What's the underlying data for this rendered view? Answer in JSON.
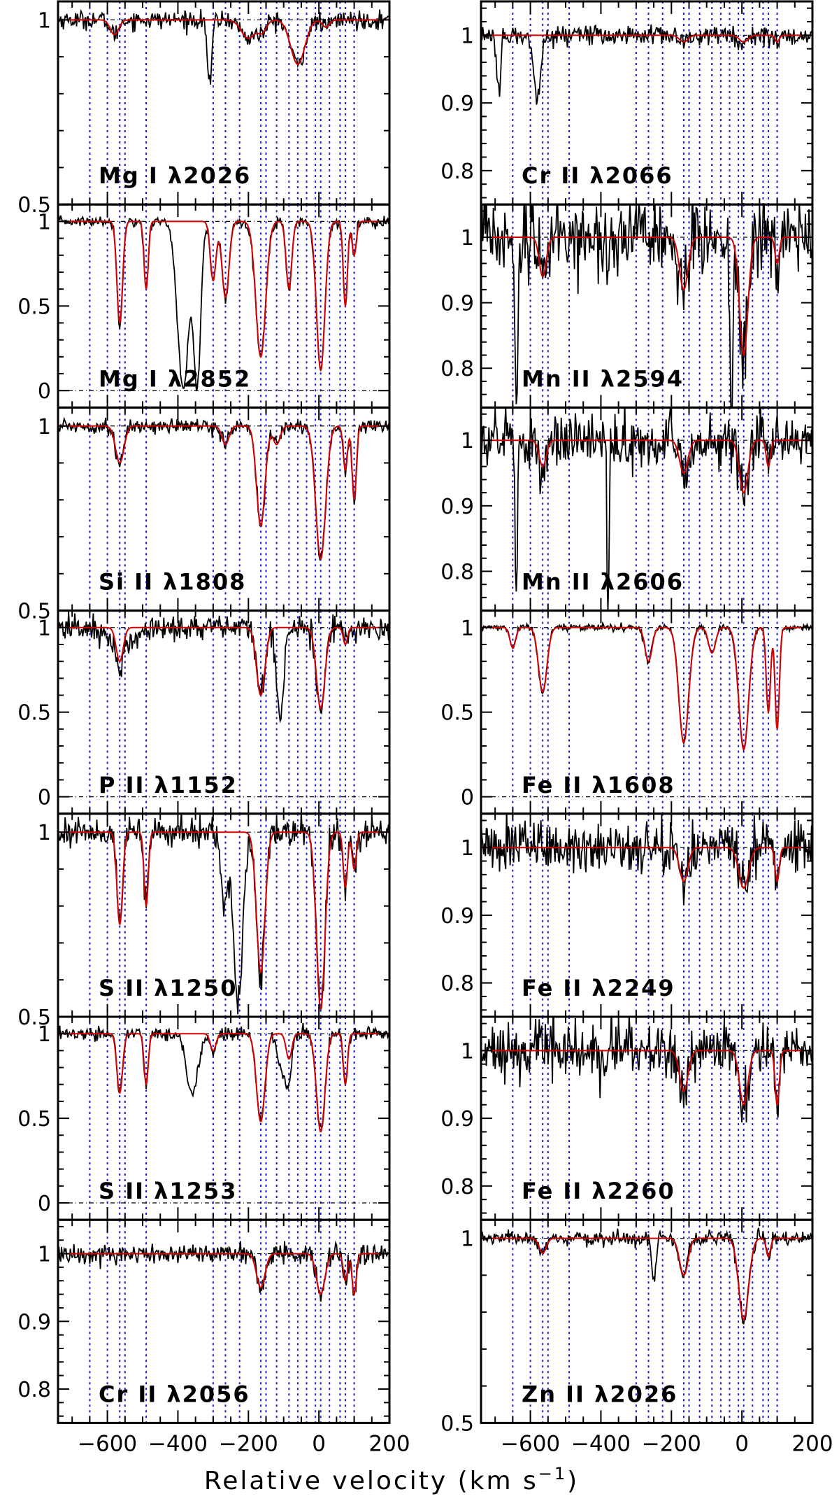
{
  "figure": {
    "xlabel": "Relative velocity (km s",
    "xlabel_sup": "−1",
    "xlabel_close": ")",
    "colors": {
      "data": "#000000",
      "model": "#d40000",
      "components": "#1a1acc",
      "ref": "#000000"
    }
  },
  "component_velocities": [
    -650,
    -600,
    -565,
    -550,
    -490,
    -300,
    -265,
    -225,
    -165,
    -150,
    -120,
    -85,
    -60,
    -35,
    -10,
    5,
    30,
    60,
    75,
    100
  ],
  "chart_data": [
    {
      "type": "line",
      "panel": "Mg I λ2026",
      "column": 0,
      "row": 0,
      "ylim": [
        0.5,
        1.05
      ],
      "yticks": [
        0.5,
        1
      ],
      "ytick_labels": [
        "0.5",
        "1"
      ],
      "xlim": [
        -740,
        200
      ],
      "lines": [
        [
          -580,
          0.04,
          12
        ],
        [
          -60,
          0.12,
          20
        ],
        [
          -200,
          0.05,
          20
        ],
        [
          -160,
          0.03,
          12
        ],
        [
          20,
          0.02,
          10
        ]
      ],
      "contam": [
        [
          -310,
          0.18,
          6
        ]
      ],
      "noise": 0.012
    },
    {
      "type": "line",
      "panel": "Mg I λ2852",
      "column": 0,
      "row": 1,
      "ylim": [
        -0.1,
        1.1
      ],
      "yticks": [
        0,
        0.5,
        1
      ],
      "ytick_labels": [
        "0",
        "0.5",
        "1"
      ],
      "xlim": [
        -740,
        200
      ],
      "lines": [
        [
          -565,
          0.6,
          8
        ],
        [
          -490,
          0.4,
          6
        ],
        [
          -300,
          0.35,
          8
        ],
        [
          -265,
          0.45,
          10
        ],
        [
          -165,
          0.8,
          14
        ],
        [
          -85,
          0.4,
          8
        ],
        [
          5,
          0.88,
          12
        ],
        [
          75,
          0.5,
          6
        ],
        [
          100,
          0.2,
          6
        ]
      ],
      "contam": [
        [
          -385,
          1.0,
          16
        ],
        [
          -345,
          0.95,
          10
        ]
      ],
      "noise": 0.015
    },
    {
      "type": "line",
      "panel": "Si II λ1808",
      "column": 0,
      "row": 2,
      "ylim": [
        0.5,
        1.05
      ],
      "yticks": [
        0.5,
        1
      ],
      "ytick_labels": [
        "0.5",
        "1"
      ],
      "xlim": [
        -740,
        200
      ],
      "lines": [
        [
          -565,
          0.1,
          12
        ],
        [
          -265,
          0.05,
          10
        ],
        [
          -165,
          0.27,
          12
        ],
        [
          -120,
          0.05,
          10
        ],
        [
          5,
          0.36,
          14
        ],
        [
          75,
          0.12,
          6
        ],
        [
          100,
          0.2,
          6
        ]
      ],
      "contam": [],
      "noise": 0.01
    },
    {
      "type": "line",
      "panel": "P II λ1152",
      "column": 0,
      "row": 3,
      "ylim": [
        -0.1,
        1.1
      ],
      "yticks": [
        0,
        0.5,
        1
      ],
      "ytick_labels": [
        "0",
        "0.5",
        "1"
      ],
      "xlim": [
        -740,
        200
      ],
      "lines": [
        [
          -565,
          0.2,
          10
        ],
        [
          -165,
          0.4,
          12
        ],
        [
          5,
          0.48,
          12
        ],
        [
          75,
          0.1,
          6
        ]
      ],
      "contam": [
        [
          -110,
          0.5,
          10
        ],
        [
          -560,
          0.08,
          40
        ]
      ],
      "noise": 0.04
    },
    {
      "type": "line",
      "panel": "S II λ1250",
      "column": 0,
      "row": 4,
      "ylim": [
        0.5,
        1.05
      ],
      "yticks": [
        0.5,
        1
      ],
      "ytick_labels": [
        "0.5",
        "1"
      ],
      "xlim": [
        -740,
        200
      ],
      "lines": [
        [
          -565,
          0.25,
          8
        ],
        [
          -490,
          0.2,
          6
        ],
        [
          -165,
          0.38,
          12
        ],
        [
          5,
          0.48,
          12
        ],
        [
          75,
          0.15,
          6
        ],
        [
          100,
          0.1,
          6
        ]
      ],
      "contam": [
        [
          -230,
          0.45,
          14
        ],
        [
          -270,
          0.2,
          8
        ]
      ],
      "noise": 0.02
    },
    {
      "type": "line",
      "panel": "S II λ1253",
      "column": 0,
      "row": 5,
      "ylim": [
        -0.1,
        1.1
      ],
      "yticks": [
        0,
        0.5,
        1
      ],
      "ytick_labels": [
        "0",
        "0.5",
        "1"
      ],
      "xlim": [
        -740,
        200
      ],
      "lines": [
        [
          -565,
          0.35,
          8
        ],
        [
          -490,
          0.3,
          6
        ],
        [
          -300,
          0.1,
          8
        ],
        [
          -165,
          0.52,
          12
        ],
        [
          -85,
          0.15,
          8
        ],
        [
          5,
          0.58,
          12
        ],
        [
          75,
          0.3,
          6
        ]
      ],
      "contam": [
        [
          -360,
          0.35,
          16
        ],
        [
          -100,
          0.25,
          14
        ]
      ],
      "noise": 0.02
    },
    {
      "type": "line",
      "panel": "Cr II λ2056",
      "column": 0,
      "row": 6,
      "ylim": [
        0.75,
        1.05
      ],
      "yticks": [
        0.8,
        0.9,
        1
      ],
      "ytick_labels": [
        "0.8",
        "0.9",
        "1"
      ],
      "xlim": [
        -740,
        200
      ],
      "lines": [
        [
          -165,
          0.05,
          12
        ],
        [
          5,
          0.06,
          12
        ],
        [
          75,
          0.04,
          6
        ],
        [
          100,
          0.06,
          6
        ]
      ],
      "contam": [],
      "noise": 0.008
    },
    {
      "type": "line",
      "panel": "Cr II λ2066",
      "column": 1,
      "row": 0,
      "ylim": [
        0.75,
        1.05
      ],
      "yticks": [
        0.8,
        0.9,
        1
      ],
      "ytick_labels": [
        "0.8",
        "0.9",
        "1"
      ],
      "xlim": [
        -740,
        200
      ],
      "lines": [
        [
          -165,
          0.01,
          12
        ],
        [
          5,
          0.01,
          12
        ],
        [
          100,
          0.01,
          6
        ]
      ],
      "contam": [
        [
          -690,
          0.08,
          6
        ],
        [
          -580,
          0.1,
          10
        ]
      ],
      "noise": 0.008
    },
    {
      "type": "line",
      "panel": "Mn II λ2594",
      "column": 1,
      "row": 1,
      "ylim": [
        0.74,
        1.05
      ],
      "yticks": [
        0.8,
        0.9,
        1
      ],
      "ytick_labels": [
        "0.8",
        "0.9",
        "1"
      ],
      "xlim": [
        -740,
        200
      ],
      "lines": [
        [
          -565,
          0.06,
          10
        ],
        [
          -165,
          0.08,
          12
        ],
        [
          5,
          0.18,
          12
        ],
        [
          100,
          0.04,
          6
        ]
      ],
      "contam": [
        [
          -640,
          0.25,
          4
        ],
        [
          -30,
          0.3,
          4
        ]
      ],
      "noise": 0.03
    },
    {
      "type": "line",
      "panel": "Mn II λ2606",
      "column": 1,
      "row": 2,
      "ylim": [
        0.74,
        1.05
      ],
      "yticks": [
        0.8,
        0.9,
        1
      ],
      "ytick_labels": [
        "0.8",
        "0.9",
        "1"
      ],
      "xlim": [
        -740,
        200
      ],
      "lines": [
        [
          -565,
          0.04,
          10
        ],
        [
          -165,
          0.05,
          12
        ],
        [
          5,
          0.08,
          12
        ],
        [
          75,
          0.04,
          6
        ]
      ],
      "contam": [
        [
          -640,
          0.25,
          3
        ],
        [
          -380,
          0.3,
          3
        ]
      ],
      "noise": 0.02
    },
    {
      "type": "line",
      "panel": "Fe II λ1608",
      "column": 1,
      "row": 3,
      "ylim": [
        -0.1,
        1.1
      ],
      "yticks": [
        0,
        0.5,
        1
      ],
      "ytick_labels": [
        "0",
        "0.5",
        "1"
      ],
      "xlim": [
        -740,
        200
      ],
      "lines": [
        [
          -565,
          0.38,
          12
        ],
        [
          -650,
          0.12,
          8
        ],
        [
          -265,
          0.2,
          10
        ],
        [
          -165,
          0.68,
          14
        ],
        [
          -85,
          0.15,
          10
        ],
        [
          5,
          0.72,
          14
        ],
        [
          75,
          0.5,
          6
        ],
        [
          100,
          0.6,
          6
        ]
      ],
      "contam": [],
      "noise": 0.01
    },
    {
      "type": "line",
      "panel": "Fe II λ2249",
      "column": 1,
      "row": 4,
      "ylim": [
        0.75,
        1.05
      ],
      "yticks": [
        0.8,
        0.9,
        1
      ],
      "ytick_labels": [
        "0.8",
        "0.9",
        "1"
      ],
      "xlim": [
        -740,
        200
      ],
      "lines": [
        [
          -165,
          0.05,
          12
        ],
        [
          5,
          0.06,
          14
        ],
        [
          100,
          0.05,
          6
        ]
      ],
      "contam": [],
      "noise": 0.02
    },
    {
      "type": "line",
      "panel": "Fe II λ2260",
      "column": 1,
      "row": 5,
      "ylim": [
        0.75,
        1.05
      ],
      "yticks": [
        0.8,
        0.9,
        1
      ],
      "ytick_labels": [
        "0.8",
        "0.9",
        "1"
      ],
      "xlim": [
        -740,
        200
      ],
      "lines": [
        [
          -165,
          0.06,
          12
        ],
        [
          5,
          0.08,
          12
        ],
        [
          100,
          0.08,
          6
        ]
      ],
      "contam": [],
      "noise": 0.02
    },
    {
      "type": "line",
      "panel": "Zn II λ2026",
      "column": 1,
      "row": 6,
      "ylim": [
        0.5,
        1.05
      ],
      "yticks": [
        0.5,
        1
      ],
      "ytick_labels": [
        "0.5",
        "1"
      ],
      "xlim": [
        -740,
        200
      ],
      "lines": [
        [
          -565,
          0.04,
          10
        ],
        [
          -165,
          0.1,
          12
        ],
        [
          5,
          0.22,
          14
        ],
        [
          75,
          0.05,
          6
        ]
      ],
      "contam": [
        [
          -250,
          0.12,
          6
        ]
      ],
      "noise": 0.01
    }
  ],
  "xaxis": {
    "ticks": [
      -600,
      -400,
      -200,
      0,
      200
    ],
    "tick_labels": [
      "−600",
      "−400",
      "−200",
      "0",
      "200"
    ]
  }
}
